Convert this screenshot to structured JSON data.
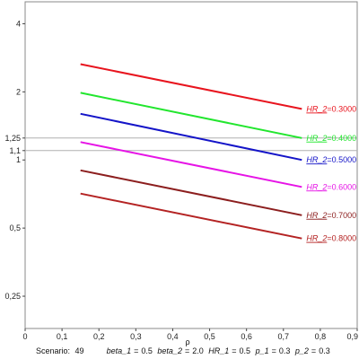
{
  "chart_data": {
    "type": "line",
    "xlabel": "ρ",
    "ylabel": "",
    "xlim": [
      0,
      0.9
    ],
    "ylim": [
      0.18,
      5
    ],
    "y_scale": "log",
    "x_ticks": [
      "0",
      "0,1",
      "0,2",
      "0,3",
      "0,4",
      "0,5",
      "0,6",
      "0,7",
      "0,8",
      "0,9"
    ],
    "y_ticks": [
      {
        "label": "0,25",
        "value": 0.25
      },
      {
        "label": "0,5",
        "value": 0.5
      },
      {
        "label": "1",
        "value": 1.0
      },
      {
        "label": "1,1",
        "value": 1.1
      },
      {
        "label": "1,25",
        "value": 1.25
      },
      {
        "label": "2",
        "value": 2.0
      },
      {
        "label": "4",
        "value": 4.0
      }
    ],
    "reference_lines": [
      1.1,
      1.25
    ],
    "series": [
      {
        "name": "HR_2",
        "value_label": "0.3000",
        "color": "#e8141e",
        "x": [
          0.15,
          0.75
        ],
        "y": [
          2.65,
          1.68
        ]
      },
      {
        "name": "HR_2",
        "value_label": "0.4000",
        "color": "#22e62e",
        "x": [
          0.15,
          0.75
        ],
        "y": [
          1.98,
          1.25
        ]
      },
      {
        "name": "HR_2",
        "value_label": "0.5000",
        "color": "#1414c8",
        "x": [
          0.15,
          0.75
        ],
        "y": [
          1.6,
          1.0
        ]
      },
      {
        "name": "HR_2",
        "value_label": "0.6000",
        "color": "#e614e6",
        "x": [
          0.15,
          0.75
        ],
        "y": [
          1.2,
          0.76
        ]
      },
      {
        "name": "HR_2",
        "value_label": "0.7000",
        "color": "#8c1e1e",
        "x": [
          0.15,
          0.75
        ],
        "y": [
          0.9,
          0.57
        ]
      },
      {
        "name": "HR_2",
        "value_label": "0.8000",
        "color": "#b42323",
        "x": [
          0.15,
          0.75
        ],
        "y": [
          0.71,
          0.45
        ]
      }
    ]
  },
  "footer": {
    "scenario_key": "Scenario:",
    "scenario_value": "49",
    "params": [
      {
        "key": "beta_1",
        "value": "0.5"
      },
      {
        "key": "beta_2",
        "value": "2.0"
      },
      {
        "key": "HR_1",
        "value": "0.5"
      },
      {
        "key": "p_1",
        "value": "0.3"
      },
      {
        "key": "p_2",
        "value": "0.3"
      }
    ]
  }
}
